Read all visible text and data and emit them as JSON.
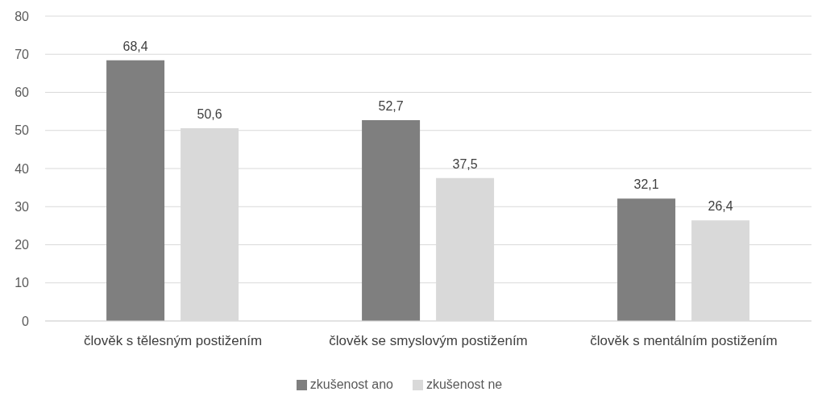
{
  "chart_data": {
    "type": "bar",
    "categories": [
      "člověk s tělesným postižením",
      "člověk se smyslovým postižením",
      "člověk s mentálním postižením"
    ],
    "series": [
      {
        "name": "zkušenost ano",
        "color": "#7f7f7f",
        "values": [
          68.4,
          52.7,
          32.1
        ],
        "value_labels": [
          "68,4",
          "52,7",
          "32,1"
        ]
      },
      {
        "name": "zkušenost ne",
        "color": "#d9d9d9",
        "values": [
          50.6,
          37.5,
          26.4
        ],
        "value_labels": [
          "50,6",
          "37,5",
          "26,4"
        ]
      }
    ],
    "ylim": [
      0,
      80
    ],
    "yticks": [
      0,
      10,
      20,
      30,
      40,
      50,
      60,
      70,
      80
    ],
    "grid": "y",
    "legend": "bottom"
  }
}
